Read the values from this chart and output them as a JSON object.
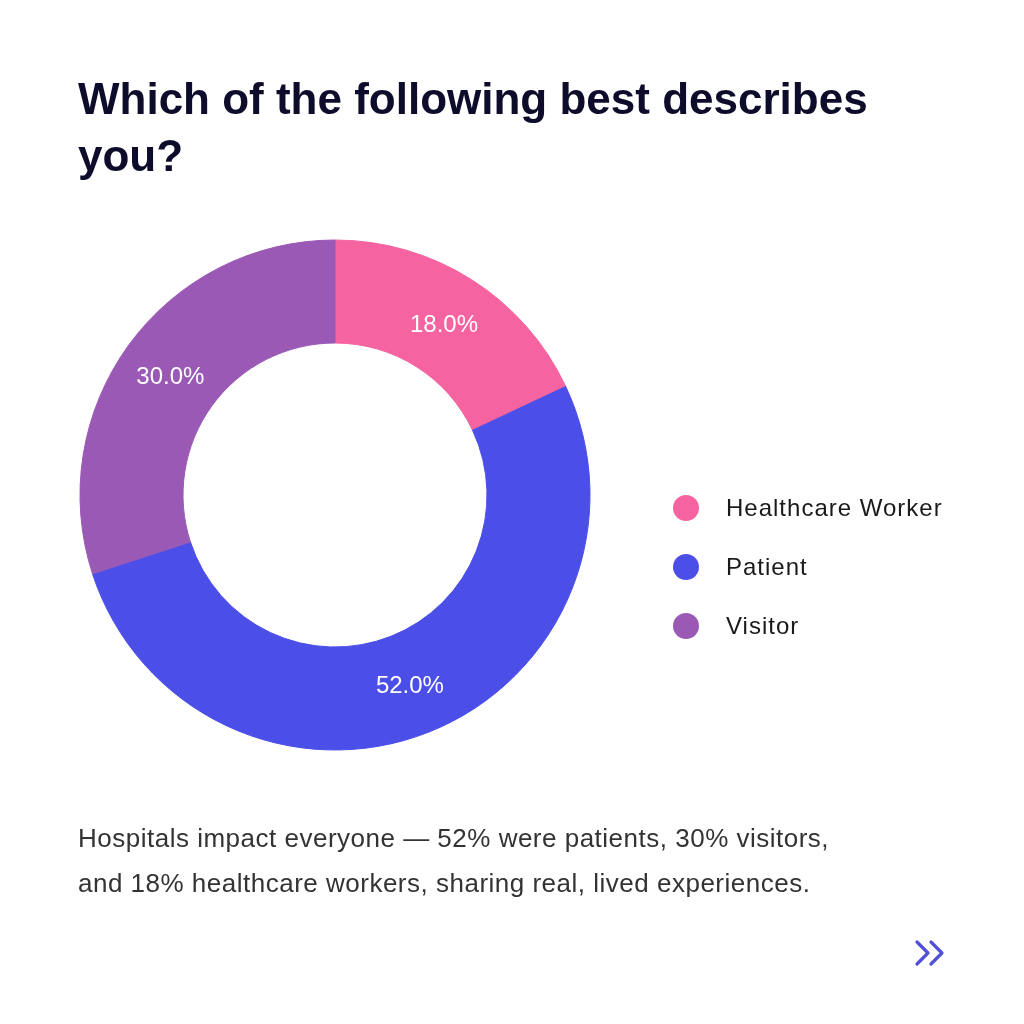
{
  "chart_data": {
    "type": "donut",
    "title": "Which of the following best describes you?",
    "categories": [
      "Healthcare Worker",
      "Patient",
      "Visitor"
    ],
    "values": [
      18,
      52,
      30
    ],
    "colors": [
      "#f564a0",
      "#4b4fe8",
      "#9b59b6"
    ],
    "value_labels": [
      "18.0%",
      "52.0%",
      "30.0%"
    ],
    "legend": "right",
    "annotations": [
      "Hospitals impact everyone — 52% were patients, 30% visitors, and 18% healthcare workers, sharing real, lived experiences."
    ]
  }
}
